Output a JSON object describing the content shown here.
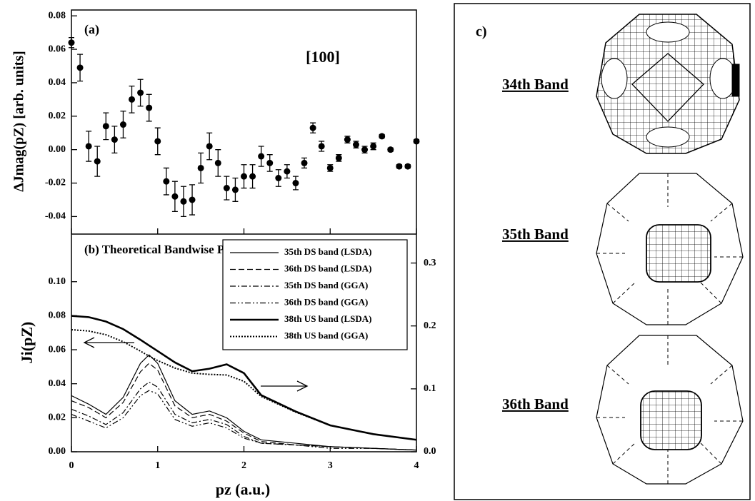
{
  "chart_data": [
    {
      "type": "scatter",
      "panel_label": "(a)",
      "annotation": "[100]",
      "ylabel": "ΔJmag(pZ) [arb. units]",
      "xlim": [
        0,
        4
      ],
      "ylim": [
        -0.0505,
        0.0835
      ],
      "yticks": [
        {
          "value": -0.04,
          "label": "-0.04"
        },
        {
          "value": -0.02,
          "label": "-0.02"
        },
        {
          "value": 0,
          "label": "0.00"
        },
        0.02,
        0.04,
        0.06,
        0.08
      ],
      "series": [
        {
          "color": "#000000",
          "x": [
            0,
            0.1,
            0.2,
            0.3,
            0.4,
            0.5,
            0.6,
            0.7,
            0.8,
            0.9,
            1,
            1.1,
            1.2,
            1.3,
            1.4,
            1.5,
            1.6,
            1.7,
            1.8,
            1.9,
            2,
            2.1,
            2.2,
            2.3,
            2.4,
            2.5,
            2.6,
            2.7,
            2.8,
            2.9,
            3,
            3.1,
            3.2,
            3.3,
            3.4,
            3.5,
            3.6,
            3.7,
            3.8,
            3.9,
            4
          ],
          "values": [
            0.064,
            0.049,
            0.002,
            -0.007,
            0.014,
            0.006,
            0.015,
            0.03,
            0.034,
            0.025,
            0.005,
            -0.019,
            -0.028,
            -0.031,
            -0.03,
            -0.011,
            0.002,
            -0.008,
            -0.023,
            -0.024,
            -0.016,
            -0.016,
            -0.004,
            -0.008,
            -0.017,
            -0.013,
            -0.02,
            -0.008,
            0.013,
            0.002,
            -0.011,
            -0.005,
            0.006,
            0.003,
            0.0,
            0.002,
            0.008,
            0.0,
            -0.01,
            -0.01,
            0.005
          ],
          "errors": [
            0.003,
            0.008,
            0.009,
            0.009,
            0.008,
            0.008,
            0.008,
            0.008,
            0.008,
            0.008,
            0.008,
            0.008,
            0.009,
            0.009,
            0.009,
            0.009,
            0.008,
            0.008,
            0.007,
            0.007,
            0.007,
            0.007,
            0.006,
            0.005,
            0.005,
            0.004,
            0.004,
            0.003,
            0.003,
            0.003,
            0.002,
            0.002,
            0.002,
            0.002,
            0.002,
            0.002,
            0.001,
            0.001,
            0.001,
            0.001,
            0.001
          ]
        }
      ]
    },
    {
      "type": "line",
      "panel_label": "(b)  Theoretical Bandwise Profiles",
      "xlabel": "pz (a.u.)",
      "ylabel": "Ji(pZ)",
      "xlim": [
        0,
        4
      ],
      "ylim": [
        0,
        0.128
      ],
      "y2lim": [
        0,
        0.346
      ],
      "xticks": [
        0,
        1,
        2,
        3,
        4
      ],
      "yticks": [
        {
          "value": 0,
          "label": "0.00"
        },
        0.02,
        0.04,
        0.06,
        0.08,
        {
          "value": 0.1,
          "label": "0.10"
        }
      ],
      "y2ticks": [
        {
          "value": 0,
          "label": "0.0"
        },
        0.1,
        0.2,
        0.3
      ],
      "x": [
        0,
        0.2,
        0.4,
        0.6,
        0.8,
        0.9,
        1,
        1.2,
        1.4,
        1.6,
        1.8,
        2,
        2.2,
        2.6,
        3,
        3.5,
        4
      ],
      "series": [
        {
          "name": "35th DS band (LSDA)",
          "color": "#000000",
          "dash": "none",
          "width": 1.2,
          "values": [
            0.033,
            0.028,
            0.022,
            0.032,
            0.052,
            0.057,
            0.052,
            0.03,
            0.022,
            0.024,
            0.02,
            0.012,
            0.007,
            0.005,
            0.003,
            0.002,
            0.001
          ]
        },
        {
          "name": "36th DS band (LSDA)",
          "color": "#000000",
          "dash": "8,4",
          "width": 1.2,
          "values": [
            0.03,
            0.026,
            0.02,
            0.029,
            0.047,
            0.052,
            0.048,
            0.027,
            0.02,
            0.022,
            0.018,
            0.011,
            0.006,
            0.004,
            0.003,
            0.002,
            0.001
          ]
        },
        {
          "name": "35th DS band (GGA)",
          "color": "#000000",
          "dash": "8,3,2,3",
          "width": 1.2,
          "values": [
            0.025,
            0.021,
            0.016,
            0.023,
            0.037,
            0.041,
            0.038,
            0.022,
            0.017,
            0.019,
            0.016,
            0.009,
            0.005,
            0.004,
            0.003,
            0.002,
            0.001
          ]
        },
        {
          "name": "36th DS band (GGA)",
          "color": "#000000",
          "dash": "8,3,2,3,2,3",
          "width": 1.2,
          "values": [
            0.022,
            0.018,
            0.014,
            0.02,
            0.033,
            0.036,
            0.034,
            0.019,
            0.015,
            0.017,
            0.014,
            0.008,
            0.005,
            0.004,
            0.002,
            0.002,
            0.001
          ]
        },
        {
          "name": "38th US band (LSDA)",
          "color": "#000000",
          "dash": "none",
          "width": 2.6,
          "axis": "y2",
          "values": [
            0.216,
            0.214,
            0.207,
            0.195,
            0.178,
            0.169,
            0.16,
            0.142,
            0.128,
            0.132,
            0.139,
            0.125,
            0.09,
            0.064,
            0.042,
            0.028,
            0.019
          ]
        },
        {
          "name": "38th US band (GGA)",
          "color": "#000000",
          "dash": "2,2",
          "width": 2,
          "axis": "y2",
          "values": [
            0.194,
            0.192,
            0.186,
            0.175,
            0.16,
            0.152,
            0.145,
            0.133,
            0.125,
            0.123,
            0.122,
            0.112,
            0.088,
            0.063,
            0.042,
            0.028,
            0.019
          ]
        }
      ]
    }
  ],
  "panel_c": {
    "label": "c)",
    "bands": [
      "34th Band",
      "35th Band",
      "36th Band"
    ]
  }
}
